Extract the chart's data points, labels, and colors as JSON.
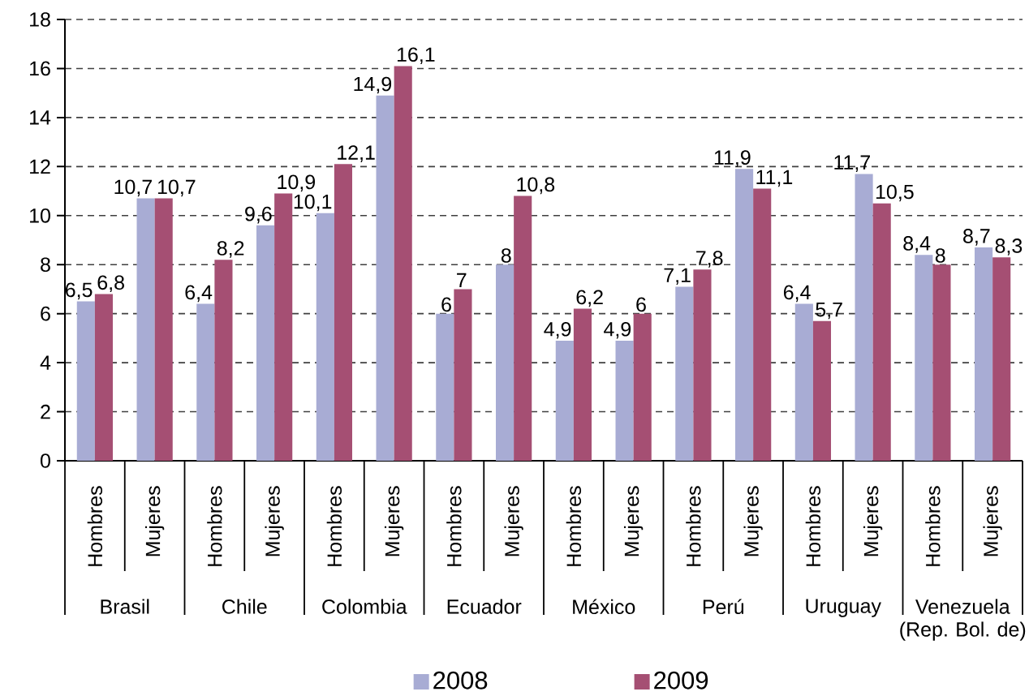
{
  "chart_data": {
    "type": "bar",
    "categories": [
      "Hombres",
      "Mujeres",
      "Hombres",
      "Mujeres",
      "Hombres",
      "Mujeres",
      "Hombres",
      "Mujeres",
      "Hombres",
      "Mujeres",
      "Hombres",
      "Mujeres",
      "Hombres",
      "Mujeres",
      "Hombres",
      "Mujeres"
    ],
    "annotations": [
      "Brasil",
      "Chile",
      "Colombia",
      "Ecuador",
      "México",
      "Perú",
      "Uruguay",
      "Venezuela (Rep. Bol. de)"
    ],
    "series": [
      {
        "name": "2008",
        "color": "#a8acd4",
        "values": [
          6.5,
          10.7,
          6.4,
          9.6,
          10.1,
          14.9,
          6,
          8,
          4.9,
          4.9,
          7.1,
          11.9,
          6.4,
          11.7,
          8.4,
          8.7
        ],
        "value_labels": [
          "6,5",
          "10,7",
          "6,4",
          "9,6",
          "10,1",
          "14,9",
          "6",
          "8",
          "4,9",
          "4,9",
          "7,1",
          "11,9",
          "6,4",
          "11,7",
          "8,4",
          "8,7"
        ]
      },
      {
        "name": "2009",
        "color": "#a54f73",
        "values": [
          6.8,
          10.7,
          8.2,
          10.9,
          12.1,
          16.1,
          7,
          10.8,
          6.2,
          6,
          7.8,
          11.1,
          5.7,
          10.5,
          8,
          8.3
        ],
        "value_labels": [
          "6,8",
          "10,7",
          "8,2",
          "10,9",
          "12,1",
          "16,1",
          "7",
          "10,8",
          "6,2",
          "6",
          "7,8",
          "11,1",
          "5,7",
          "10,5",
          "8",
          "8,3"
        ]
      }
    ],
    "ylim": [
      0,
      18
    ],
    "yticks": [
      0,
      2,
      4,
      6,
      8,
      10,
      12,
      14,
      16,
      18
    ],
    "grid": "y",
    "legend": "bottom"
  }
}
